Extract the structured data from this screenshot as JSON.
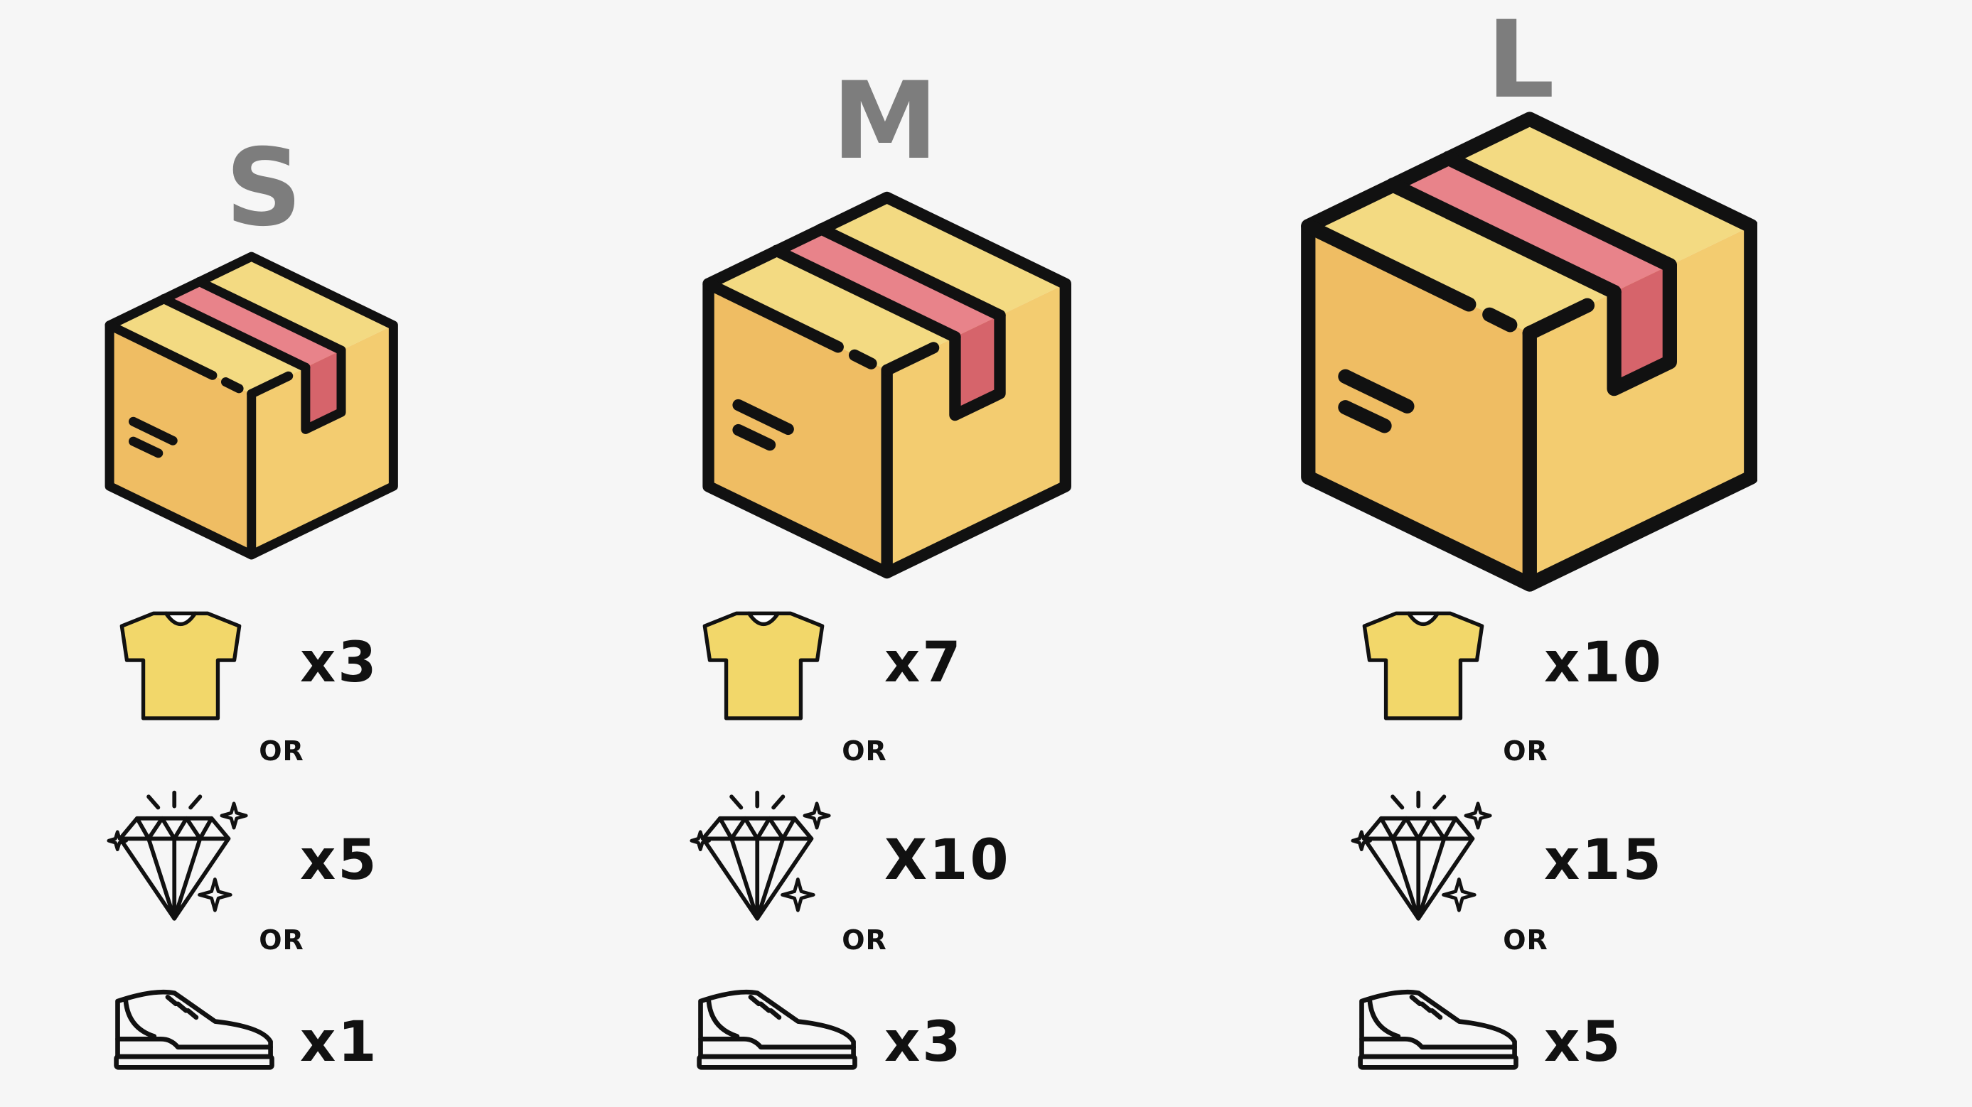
{
  "colors": {
    "background": "#f6f6f6",
    "box_front": "#efbd63",
    "box_side": "#f3cc70",
    "box_top": "#f3da82",
    "tape": "#e8838a",
    "tape_flap": "#d6646b",
    "shirt": "#f2d76a",
    "label_gray": "#7d7d7d",
    "outline": "#111111"
  },
  "columns": [
    {
      "size": "S",
      "items": [
        {
          "icon": "t-shirt-icon",
          "quantity": "x3"
        },
        {
          "icon": "diamond-icon",
          "quantity": "x5"
        },
        {
          "icon": "shoe-icon",
          "quantity": "x1"
        }
      ],
      "separators": [
        "OR",
        "OR"
      ]
    },
    {
      "size": "M",
      "items": [
        {
          "icon": "t-shirt-icon",
          "quantity": "x7"
        },
        {
          "icon": "diamond-icon",
          "quantity": "X10"
        },
        {
          "icon": "shoe-icon",
          "quantity": "x3"
        }
      ],
      "separators": [
        "OR",
        "OR"
      ]
    },
    {
      "size": "L",
      "items": [
        {
          "icon": "t-shirt-icon",
          "quantity": "x10"
        },
        {
          "icon": "diamond-icon",
          "quantity": "x15"
        },
        {
          "icon": "shoe-icon",
          "quantity": "x5"
        }
      ],
      "separators": [
        "OR",
        "OR"
      ]
    }
  ]
}
